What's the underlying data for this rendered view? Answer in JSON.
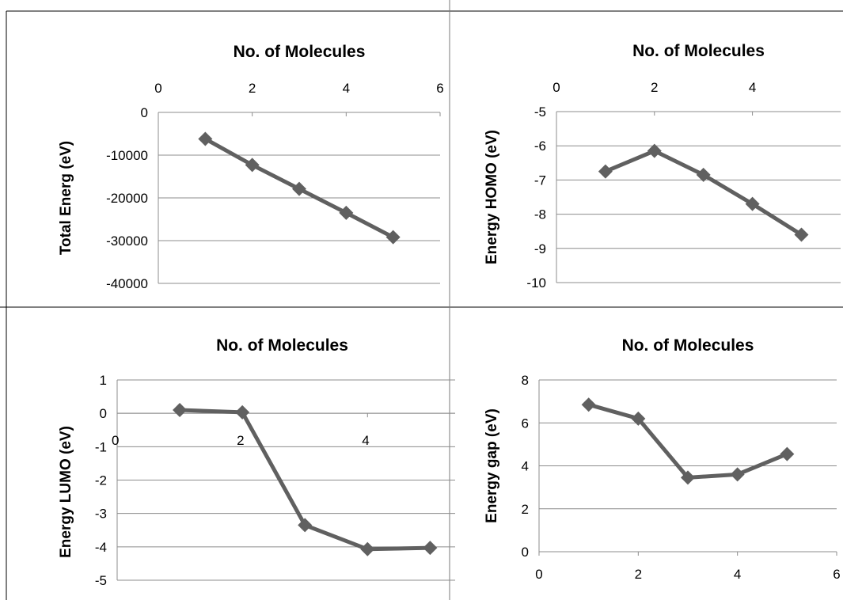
{
  "chart_data": [
    {
      "type": "line",
      "title": "No. of Molecules",
      "ylabel": "Total Energ (eV)",
      "xlabel": "",
      "xlim": [
        0,
        6
      ],
      "ylim": [
        -40000,
        0
      ],
      "xticks": [
        0,
        2,
        4,
        6
      ],
      "yticks": [
        0,
        -10000,
        -20000,
        -30000,
        -40000
      ],
      "xtick_labels": [
        "0",
        "2",
        "4",
        "6"
      ],
      "ytick_labels": [
        "0",
        "-10000",
        "-20000",
        "-30000",
        "-40000"
      ],
      "x_axis_position": "top",
      "grid": "horizontal",
      "marker": "diamond",
      "color": "#606060",
      "series": [
        {
          "x": [
            1,
            2,
            3,
            4,
            5
          ],
          "values": [
            -6200,
            -12300,
            -17900,
            -23500,
            -29200
          ]
        }
      ]
    },
    {
      "type": "line",
      "title": "No. of Molecules",
      "ylabel": "Energy HOMO (eV)",
      "xlabel": "",
      "xlim": [
        0,
        5.8
      ],
      "ylim": [
        -10,
        -5
      ],
      "xticks": [
        0,
        2,
        4
      ],
      "yticks": [
        -5,
        -6,
        -7,
        -8,
        -9,
        -10
      ],
      "xtick_labels": [
        "0",
        "2",
        "4"
      ],
      "ytick_labels": [
        "-5",
        "-6",
        "-7",
        "-8",
        "-9",
        "-10"
      ],
      "x_axis_position": "top",
      "grid": "horizontal",
      "marker": "diamond",
      "color": "#606060",
      "series": [
        {
          "x": [
            1,
            2,
            3,
            4,
            5
          ],
          "values": [
            -6.75,
            -6.15,
            -6.85,
            -7.7,
            -8.6
          ]
        }
      ]
    },
    {
      "type": "line",
      "title": "No. of Molecules",
      "ylabel": "Energy  LUMO (eV)",
      "xlabel": "",
      "xlim": [
        0,
        5.4
      ],
      "ylim": [
        -5,
        1
      ],
      "xticks": [
        0,
        2,
        4
      ],
      "yticks": [
        1,
        0,
        -1,
        -2,
        -3,
        -4,
        -5
      ],
      "xtick_labels": [
        "0",
        "2",
        "4"
      ],
      "ytick_labels": [
        "1",
        "0",
        "-1",
        "-2",
        "-3",
        "-4",
        "-5"
      ],
      "x_axis_position": "zero",
      "grid": "horizontal",
      "marker": "diamond",
      "color": "#606060",
      "series": [
        {
          "x": [
            1,
            2,
            3,
            4,
            5
          ],
          "values": [
            0.1,
            0.03,
            -3.35,
            -4.07,
            -4.03
          ]
        }
      ]
    },
    {
      "type": "line",
      "title": "No. of  Molecules",
      "ylabel": "Energy gap (eV)",
      "xlabel": "",
      "xlim": [
        0,
        6
      ],
      "ylim": [
        0,
        8
      ],
      "xticks": [
        0,
        2,
        4,
        6
      ],
      "yticks": [
        0,
        2,
        4,
        6,
        8
      ],
      "xtick_labels": [
        "0",
        "2",
        "4",
        "6"
      ],
      "ytick_labels": [
        "0",
        "2",
        "4",
        "6",
        "8"
      ],
      "x_axis_position": "bottom",
      "grid": "horizontal",
      "marker": "diamond",
      "color": "#606060",
      "series": [
        {
          "x": [
            1,
            2,
            3,
            4,
            5
          ],
          "values": [
            6.85,
            6.2,
            3.45,
            3.6,
            4.55
          ]
        }
      ]
    }
  ]
}
